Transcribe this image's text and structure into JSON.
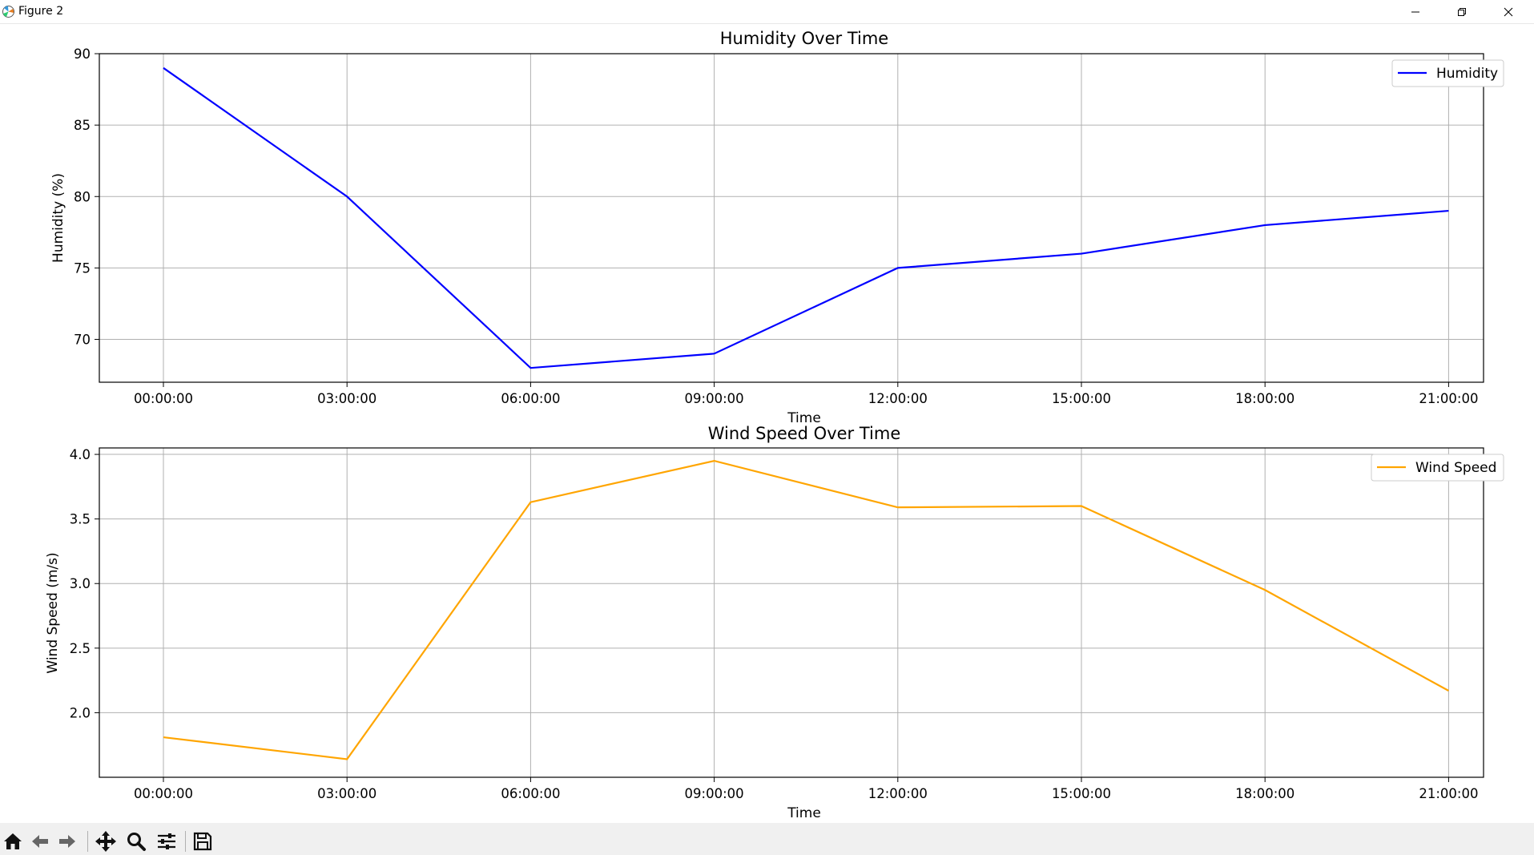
{
  "window": {
    "title": "Figure 2",
    "controls": [
      "minimize",
      "restore",
      "close"
    ]
  },
  "toolbar": {
    "icons": [
      "home-icon",
      "back-icon",
      "forward-icon",
      "pan-icon",
      "zoom-icon",
      "configure-subplots-icon",
      "save-icon"
    ]
  },
  "chart_data": [
    {
      "type": "line",
      "title": "Humidity Over Time",
      "xlabel": "Time",
      "ylabel": "Humidity (%)",
      "x": [
        "00:00:00",
        "03:00:00",
        "06:00:00",
        "09:00:00",
        "12:00:00",
        "15:00:00",
        "18:00:00",
        "21:00:00"
      ],
      "yticks": [
        "70",
        "75",
        "80",
        "85",
        "90"
      ],
      "ylim": [
        67,
        90
      ],
      "grid": true,
      "legend_position": "top-right",
      "series": [
        {
          "name": "Humidity",
          "color": "#0000ff",
          "values": [
            89,
            80,
            68,
            69,
            75,
            76,
            78,
            79
          ]
        }
      ]
    },
    {
      "type": "line",
      "title": "Wind Speed Over Time",
      "xlabel": "Time",
      "ylabel": "Wind Speed (m/s)",
      "x": [
        "00:00:00",
        "03:00:00",
        "06:00:00",
        "09:00:00",
        "12:00:00",
        "15:00:00",
        "18:00:00",
        "21:00:00"
      ],
      "yticks": [
        "2.0",
        "2.5",
        "3.0",
        "3.5",
        "4.0"
      ],
      "ylim": [
        1.5,
        4.05
      ],
      "grid": true,
      "legend_position": "top-right",
      "series": [
        {
          "name": "Wind Speed",
          "color": "#ffa500",
          "values": [
            1.81,
            1.64,
            3.63,
            3.95,
            3.59,
            3.6,
            2.95,
            2.17
          ]
        }
      ]
    }
  ]
}
